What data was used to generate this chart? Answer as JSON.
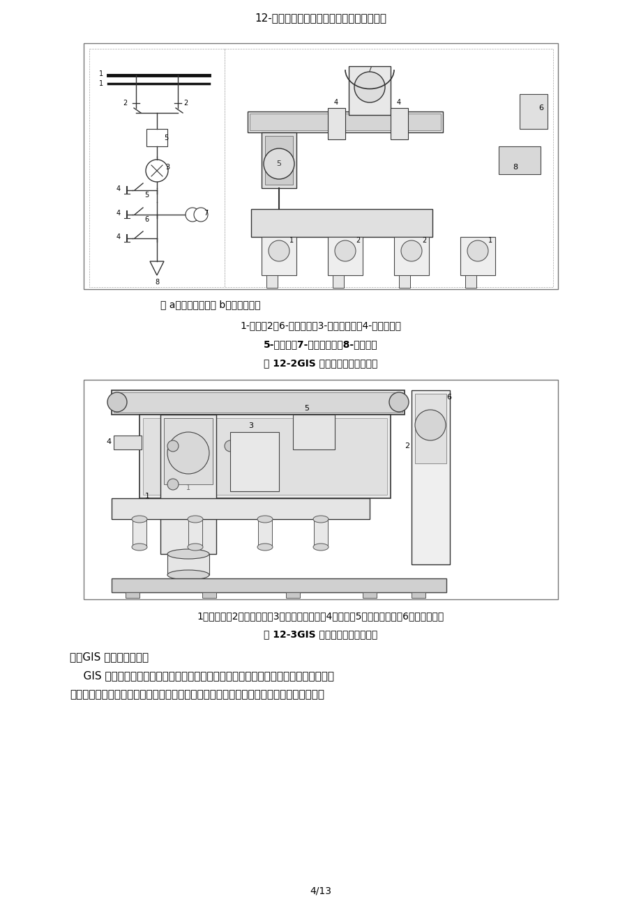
{
  "page_title": "12-第十二章气体绝缘金属封闭开关设备解析",
  "page_number": "4/13",
  "background_color": "#ffffff",
  "fig1_caption": "图 a．典型接线图图 b．结构表示图",
  "fig1_label1": "1-母线；2、6-隔走开关；3-电流互感器；4-接地开关；",
  "fig1_label2": "5-断路器；7-电压互感器；8-出线电缆",
  "fig1_title": "图 12-2GIS 的整体布局表示图之一",
  "fig2_label": "1－断路器；2－隔离开关；3－接地开关装置；4－母线；5－电流互感器；6－电压互感器",
  "fig2_title": "图 12-3GIS 的整体布局表示图之二",
  "section_title": "三、GIS 的通用技术要求",
  "body1": "    GIS 产品设计应能使设备安全地进行下述各项工作：正常运转、检查和保护性操作、引",
  "body2": "出电缆或其他设备的绝缘试验、除掉危险的静电电荷、安装或扩建后的相序校核和操作联锁",
  "text_color": "#000000",
  "gray_light": "#f0f0f0",
  "gray_medium": "#888888",
  "gray_dark": "#555555",
  "line_color": "#333333"
}
